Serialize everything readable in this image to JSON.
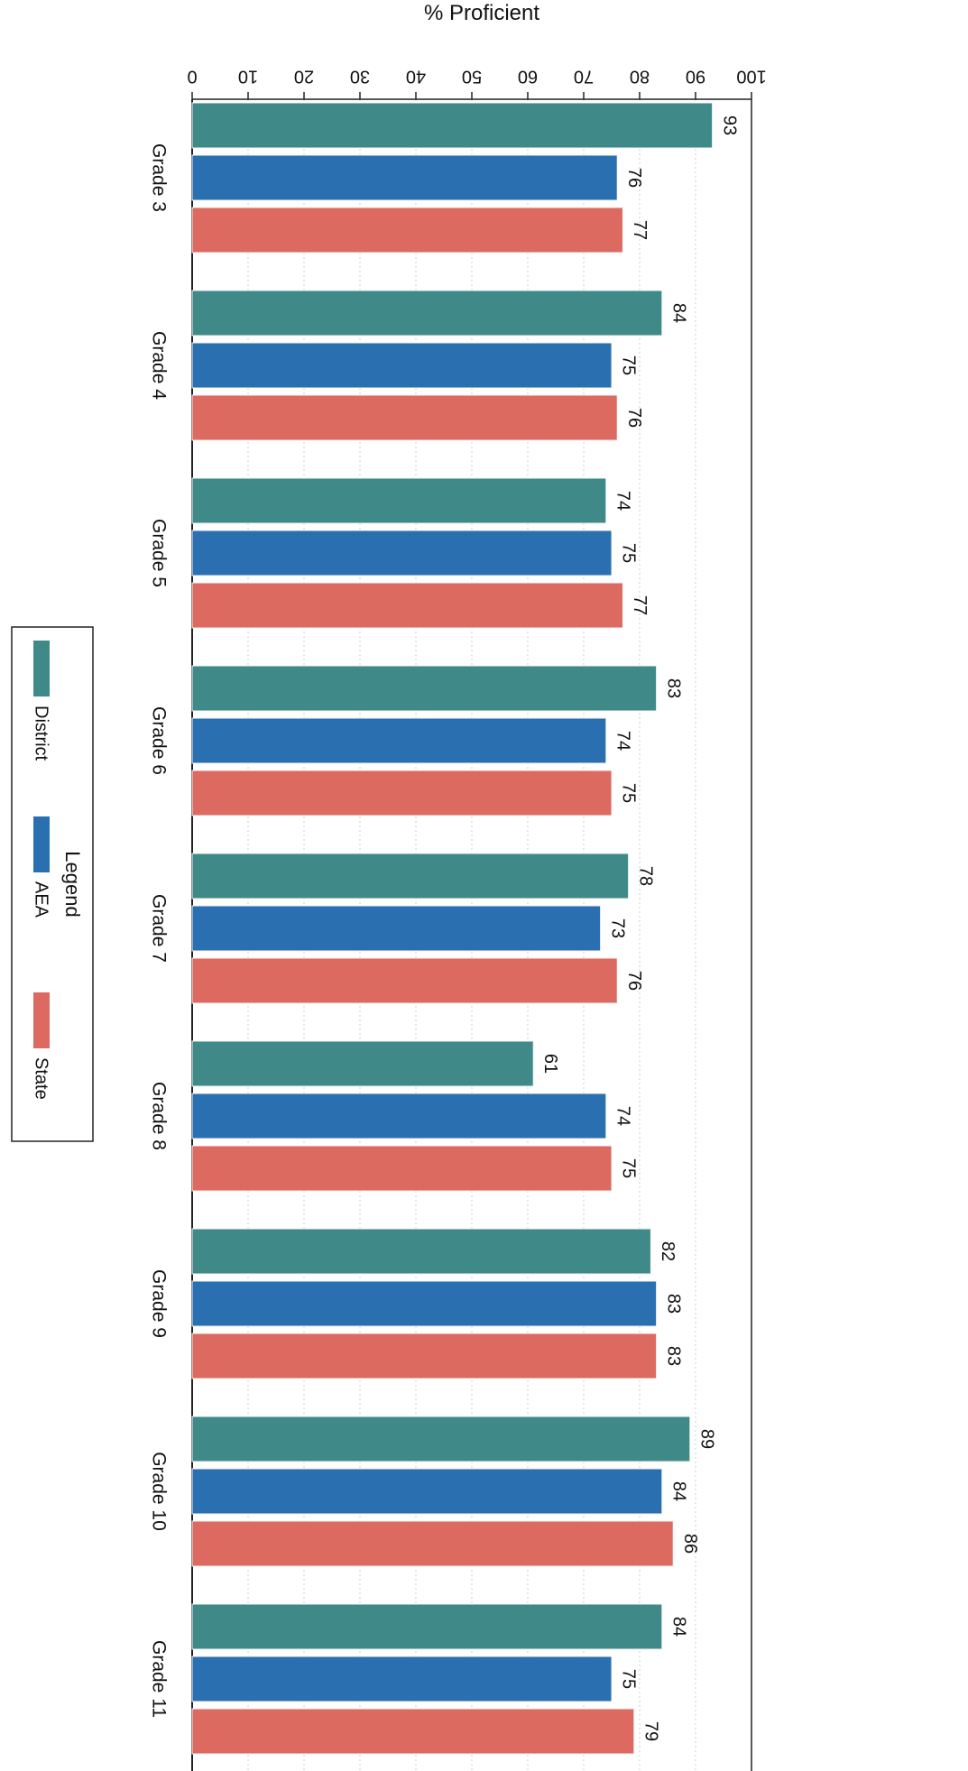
{
  "chart_data": {
    "type": "bar",
    "orientation": "horizontal",
    "xlabel": "% Proficient",
    "xlim": [
      0,
      100
    ],
    "x_ticks": [
      "0",
      "10",
      "20",
      "30",
      "40",
      "50",
      "60",
      "70",
      "80",
      "90",
      "100"
    ],
    "categories": [
      "Grade 3",
      "Grade 4",
      "Grade 5",
      "Grade 6",
      "Grade 7",
      "Grade 8",
      "Grade 9",
      "Grade 10",
      "Grade 11"
    ],
    "series": [
      {
        "name": "District",
        "color": "#3f8a88",
        "values": [
          93,
          84,
          74,
          83,
          78,
          61,
          82,
          89,
          84
        ]
      },
      {
        "name": "AEA",
        "color": "#2a6fb0",
        "values": [
          76,
          75,
          75,
          74,
          73,
          74,
          83,
          84,
          75
        ]
      },
      {
        "name": "State",
        "color": "#dc6a60",
        "values": [
          77,
          76,
          77,
          75,
          76,
          75,
          83,
          86,
          79
        ]
      }
    ],
    "legend": {
      "title": "Legend",
      "position": "left"
    },
    "grid": true
  }
}
